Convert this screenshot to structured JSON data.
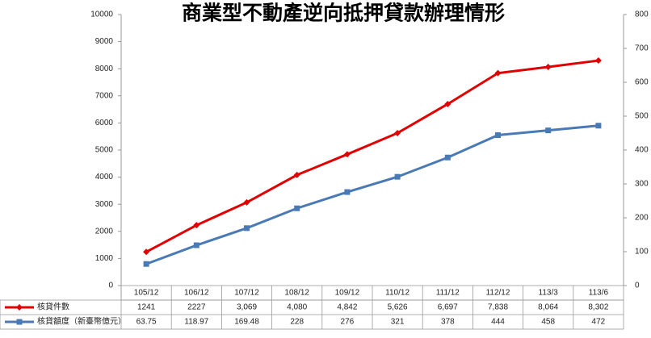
{
  "chart_data": {
    "type": "line",
    "title": "商業型不動產逆向抵押貸款辦理情形",
    "categories": [
      "105/12",
      "106/12",
      "107/12",
      "108/12",
      "109/12",
      "110/12",
      "111/12",
      "112/12",
      "113/3",
      "113/6"
    ],
    "series": [
      {
        "name": "核貸件數",
        "color": "#e00000",
        "marker": "diamond",
        "values": [
          1241,
          2227,
          3069,
          4080,
          4842,
          5626,
          6697,
          7838,
          8064,
          8302
        ],
        "value_labels": [
          "1241",
          "2227",
          "3,069",
          "4,080",
          "4,842",
          "5,626",
          "6,697",
          "7,838",
          "8,064",
          "8,302"
        ]
      },
      {
        "name": "核貸額度（新臺幣億元）",
        "color": "#4a7ab5",
        "marker": "square",
        "axis": "y2",
        "values": [
          63.75,
          118.97,
          169.48,
          228,
          276,
          321,
          378,
          444,
          458,
          472
        ]
      }
    ],
    "ylim": [
      0,
      10000
    ],
    "yticks": [
      0,
      1000,
      2000,
      3000,
      4000,
      5000,
      6000,
      7000,
      8000,
      9000,
      10000
    ],
    "y2lim": [
      0,
      800
    ],
    "y2ticks": [
      0,
      100,
      200,
      300,
      400,
      500,
      600,
      700,
      800
    ],
    "grid": false
  }
}
